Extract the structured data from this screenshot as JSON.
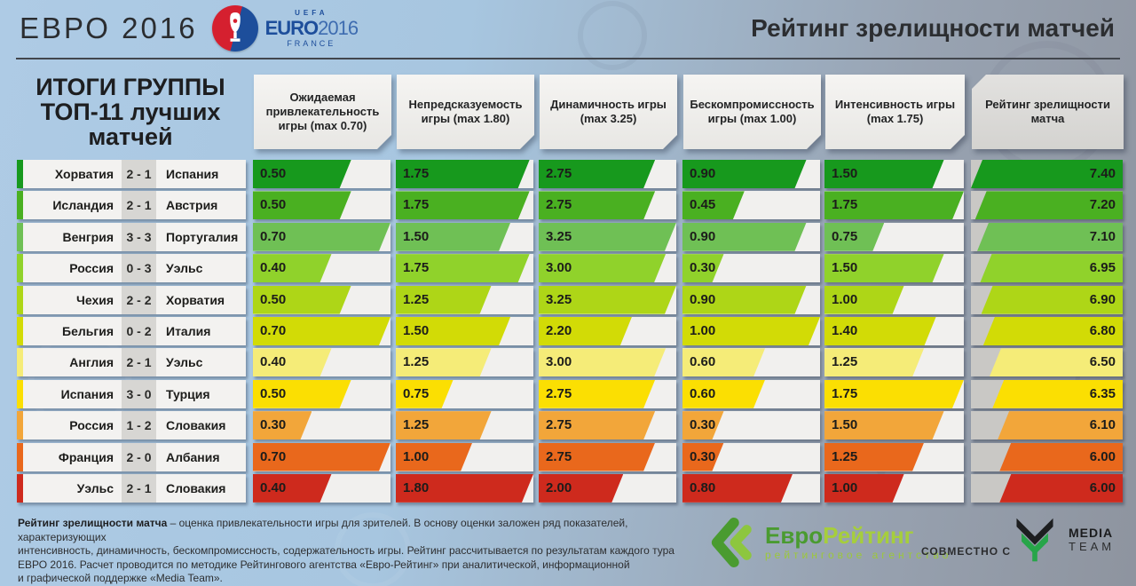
{
  "header": {
    "brand": "ЕВРО 2016",
    "logo": {
      "uefa": "UEFA",
      "euro": "EURO",
      "year": "2016",
      "country": "FRANCE"
    },
    "title": "Рейтинг зрелищности матчей"
  },
  "table": {
    "left_title_lines": [
      "ИТОГИ ГРУППЫ",
      "ТОП-11 лучших",
      "матчей"
    ],
    "columns": [
      {
        "label": "Ожидаемая привлекательность игры (max 0.70)",
        "max": 0.7
      },
      {
        "label": "Непредсказуемость игры (max 1.80)",
        "max": 1.8
      },
      {
        "label": "Динамичность игры (max 3.25)",
        "max": 3.25
      },
      {
        "label": "Бескомпромиссность игры (max 1.00)",
        "max": 1.0
      },
      {
        "label": "Интенсивность игры (max 1.75)",
        "max": 1.75
      },
      {
        "label": "Рейтинг зрелищности матча",
        "max": 7.4
      }
    ],
    "rows": [
      {
        "home": "Хорватия",
        "score": "2 - 1",
        "away": "Испания",
        "color": "#17991d",
        "values": [
          "0.50",
          "1.75",
          "2.75",
          "0.90",
          "1.50"
        ],
        "rating": "7.40"
      },
      {
        "home": "Исландия",
        "score": "2 - 1",
        "away": "Австрия",
        "color": "#4ab021",
        "values": [
          "0.50",
          "1.75",
          "2.75",
          "0.45",
          "1.75"
        ],
        "rating": "7.20"
      },
      {
        "home": "Венгрия",
        "score": "3 - 3",
        "away": "Португалия",
        "color": "#6fc055",
        "values": [
          "0.70",
          "1.50",
          "3.25",
          "0.90",
          "0.75"
        ],
        "rating": "7.10"
      },
      {
        "home": "Россия",
        "score": "0 - 3",
        "away": "Уэльс",
        "color": "#90d22b",
        "values": [
          "0.40",
          "1.75",
          "3.00",
          "0.30",
          "1.50"
        ],
        "rating": "6.95"
      },
      {
        "home": "Чехия",
        "score": "2 - 2",
        "away": "Хорватия",
        "color": "#aed617",
        "values": [
          "0.50",
          "1.25",
          "3.25",
          "0.90",
          "1.00"
        ],
        "rating": "6.90"
      },
      {
        "home": "Бельгия",
        "score": "0 - 2",
        "away": "Италия",
        "color": "#d2db06",
        "values": [
          "0.70",
          "1.50",
          "2.20",
          "1.00",
          "1.40"
        ],
        "rating": "6.80"
      },
      {
        "home": "Англия",
        "score": "2 - 1",
        "away": "Уэльс",
        "color": "#f5ec78",
        "values": [
          "0.40",
          "1.25",
          "3.00",
          "0.60",
          "1.25"
        ],
        "rating": "6.50"
      },
      {
        "home": "Испания",
        "score": "3 - 0",
        "away": "Турция",
        "color": "#fbdf02",
        "values": [
          "0.50",
          "0.75",
          "2.75",
          "0.60",
          "1.75"
        ],
        "rating": "6.35"
      },
      {
        "home": "Россия",
        "score": "1 - 2",
        "away": "Словакия",
        "color": "#f2a63a",
        "values": [
          "0.30",
          "1.25",
          "2.75",
          "0.30",
          "1.50"
        ],
        "rating": "6.10"
      },
      {
        "home": "Франция",
        "score": "2 - 0",
        "away": "Албания",
        "color": "#e9681c",
        "values": [
          "0.70",
          "1.00",
          "2.75",
          "0.30",
          "1.25"
        ],
        "rating": "6.00"
      },
      {
        "home": "Уэльс",
        "score": "2 - 1",
        "away": "Словакия",
        "color": "#ce2a1d",
        "values": [
          "0.40",
          "1.80",
          "2.00",
          "0.80",
          "1.00"
        ],
        "rating": "6.00"
      }
    ]
  },
  "chart_data": {
    "type": "bar",
    "orientation": "horizontal",
    "title": "Рейтинг зрелищности матчей — ИТОГИ ГРУППЫ, ТОП-11 лучших матчей",
    "categories": [
      "Хорватия 2 - 1 Испания",
      "Исландия 2 - 1 Австрия",
      "Венгрия 3 - 3 Португалия",
      "Россия 0 - 3 Уэльс",
      "Чехия 2 - 2 Хорватия",
      "Бельгия 0 - 2 Италия",
      "Англия 2 - 1 Уэльс",
      "Испания 3 - 0 Турция",
      "Россия 1 - 2 Словакия",
      "Франция 2 - 0 Албания",
      "Уэльс 2 - 1 Словакия"
    ],
    "series": [
      {
        "name": "Ожидаемая привлекательность игры",
        "max": 0.7,
        "values": [
          0.5,
          0.5,
          0.7,
          0.4,
          0.5,
          0.7,
          0.4,
          0.5,
          0.3,
          0.7,
          0.4
        ]
      },
      {
        "name": "Непредсказуемость игры",
        "max": 1.8,
        "values": [
          1.75,
          1.75,
          1.5,
          1.75,
          1.25,
          1.5,
          1.25,
          0.75,
          1.25,
          1.0,
          1.8
        ]
      },
      {
        "name": "Динамичность игры",
        "max": 3.25,
        "values": [
          2.75,
          2.75,
          3.25,
          3.0,
          3.25,
          2.2,
          3.0,
          2.75,
          2.75,
          2.75,
          2.0
        ]
      },
      {
        "name": "Бескомпромиссность игры",
        "max": 1.0,
        "values": [
          0.9,
          0.45,
          0.9,
          0.3,
          0.9,
          1.0,
          0.6,
          0.6,
          0.3,
          0.3,
          0.8
        ]
      },
      {
        "name": "Интенсивность игры",
        "max": 1.75,
        "values": [
          1.5,
          1.75,
          0.75,
          1.5,
          1.0,
          1.4,
          1.25,
          1.75,
          1.5,
          1.25,
          1.0
        ]
      },
      {
        "name": "Рейтинг зрелищности матча",
        "max": 7.4,
        "values": [
          7.4,
          7.2,
          7.1,
          6.95,
          6.9,
          6.8,
          6.5,
          6.35,
          6.1,
          6.0,
          6.0
        ]
      }
    ],
    "row_colors": [
      "#17991d",
      "#4ab021",
      "#6fc055",
      "#90d22b",
      "#aed617",
      "#d2db06",
      "#f5ec78",
      "#fbdf02",
      "#f2a63a",
      "#e9681c",
      "#ce2a1d"
    ],
    "legend_position": "none",
    "grid": false
  },
  "footer": {
    "bold_lead": "Рейтинг зрелищности матча",
    "line1_rest": " – оценка привлекательности игры для зрителей. В основу оценки заложен ряд показателей, характеризующих",
    "lines": [
      "интенсивность, динамичность, бескомпромиссность, содержательность игры. Рейтинг рассчитывается по результатам каждого тура",
      "ЕВРО 2016. Расчет проводится по методике Рейтингового агентства «Евро-Рейтинг» при аналитической, информационной",
      "и графической поддержке «Media Team»."
    ],
    "eurorating": {
      "name_part1": "Евро",
      "name_part2": "Рейтинг",
      "subtitle": "рейтинговое агентство"
    },
    "jointly_label": "СОВМЕСТНО С",
    "mediateam": {
      "line1": "MEDIA",
      "line2": "TEAM"
    }
  },
  "colors": {
    "background_left": "#aecbe5",
    "background_right": "#8e949f",
    "bar_track": "#f1f0ee",
    "rating_track": "#c9c8c5",
    "score_box": "#d7d6d3",
    "logo_red": "#d5202f",
    "logo_blue": "#1d4e9b",
    "eurorating_green": "#4a9b30",
    "eurorating_lime": "#a6ce3c"
  }
}
